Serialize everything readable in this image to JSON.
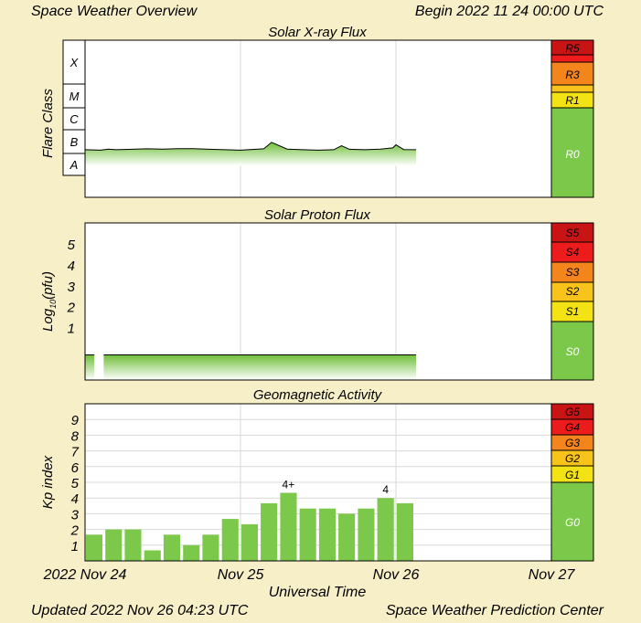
{
  "header": {
    "title": "Space Weather Overview",
    "begin": "Begin 2022 11 24 00:00 UTC"
  },
  "footer": {
    "updated": "Updated 2022 Nov 26 04:23 UTC",
    "center": "Space Weather Prediction Center"
  },
  "colors": {
    "background": "#f7efc7",
    "green": "#7cc84a",
    "light_green": "#c8e8a8",
    "yellow": "#f4e314",
    "gold": "#f8c41c",
    "orange": "#f4841c",
    "red": "#ec1c1c",
    "dark_red": "#c81414"
  },
  "chart_data": [
    {
      "type": "area",
      "title": "Solar X-ray Flux",
      "ylabel": "Flare Class",
      "flare_classes": [
        "X",
        "M",
        "C",
        "B",
        "A"
      ],
      "x_ticks": [
        "2022 Nov 24",
        "Nov 25",
        "Nov 26",
        "Nov 27"
      ],
      "x_range_days": [
        0,
        3
      ],
      "y_range_log_wm2": [
        -9,
        -2
      ],
      "series": {
        "x": [
          0,
          0.1,
          0.15,
          0.2,
          0.3,
          0.4,
          0.5,
          0.6,
          0.7,
          0.8,
          0.9,
          1.0,
          1.15,
          1.2,
          1.3,
          1.4,
          1.5,
          1.6,
          1.65,
          1.7,
          1.8,
          1.9,
          1.98,
          2.0,
          2.05,
          2.13
        ],
        "y_log": [
          -6.88,
          -6.9,
          -6.85,
          -6.88,
          -6.86,
          -6.84,
          -6.85,
          -6.83,
          -6.83,
          -6.86,
          -6.88,
          -6.9,
          -6.84,
          -6.55,
          -6.85,
          -6.88,
          -6.9,
          -6.88,
          -6.7,
          -6.86,
          -6.88,
          -6.85,
          -6.8,
          -6.66,
          -6.87,
          -6.88
        ]
      },
      "r_scale": [
        {
          "label": "R5",
          "color": "#c81414"
        },
        {
          "label": "R3",
          "color": "#f4841c"
        },
        {
          "label": "R1",
          "color": "#f4e314"
        },
        {
          "label": "R0",
          "color": "#7cc84a"
        }
      ]
    },
    {
      "type": "area",
      "title": "Solar Proton Flux",
      "ylabel": "Log10(pfu)",
      "y_ticks": [
        1,
        2,
        3,
        4,
        5
      ],
      "y_range": [
        -1.5,
        6
      ],
      "series": {
        "x": [
          0,
          0.06,
          0.07,
          0.12,
          0.3,
          0.6,
          0.9,
          1.2,
          1.5,
          1.8,
          2.13
        ],
        "y": [
          -0.3,
          -0.3,
          null,
          -0.3,
          -0.3,
          -0.3,
          -0.3,
          -0.3,
          -0.3,
          -0.3,
          -0.3
        ]
      },
      "s_scale": [
        {
          "label": "S5",
          "color": "#c81414"
        },
        {
          "label": "S4",
          "color": "#ec1c1c"
        },
        {
          "label": "S3",
          "color": "#f4841c"
        },
        {
          "label": "S2",
          "color": "#f8c41c"
        },
        {
          "label": "S1",
          "color": "#f4e314"
        },
        {
          "label": "S0",
          "color": "#7cc84a"
        }
      ]
    },
    {
      "type": "bar",
      "title": "Geomagnetic Activity",
      "ylabel": "Kp index",
      "y_ticks": [
        1,
        2,
        3,
        4,
        5,
        6,
        7,
        8,
        9
      ],
      "ylim": [
        0,
        10
      ],
      "xlabel": "Universal Time",
      "values": [
        1.67,
        2.0,
        2.0,
        0.67,
        1.67,
        1.0,
        1.67,
        2.67,
        2.33,
        3.67,
        4.33,
        3.33,
        3.33,
        3.0,
        3.33,
        4.0,
        3.67
      ],
      "bar_labels": {
        "10": "4+",
        "15": "4"
      },
      "g_scale": [
        {
          "label": "G5",
          "color": "#c81414"
        },
        {
          "label": "G4",
          "color": "#ec1c1c"
        },
        {
          "label": "G3",
          "color": "#f4841c"
        },
        {
          "label": "G2",
          "color": "#f8c41c"
        },
        {
          "label": "G1",
          "color": "#f4e314"
        },
        {
          "label": "G0",
          "color": "#7cc84a"
        }
      ]
    }
  ]
}
